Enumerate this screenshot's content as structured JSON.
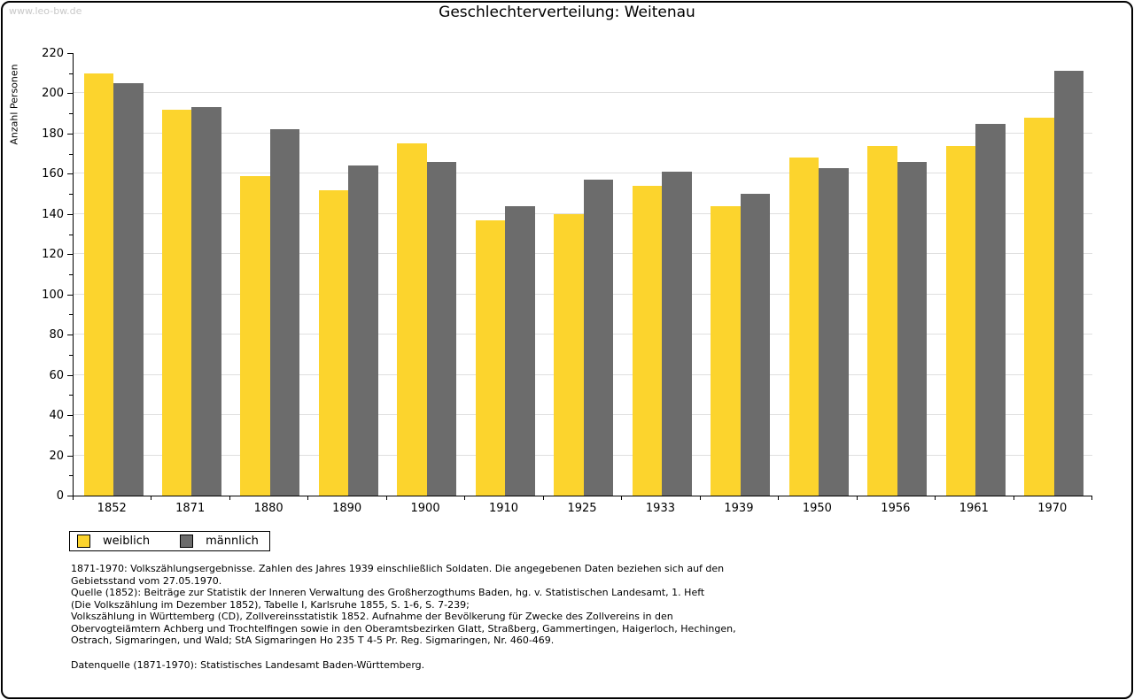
{
  "watermark": "www.leo-bw.de",
  "title": "Geschlechterverteilung: Weitenau",
  "chart_data": {
    "type": "bar",
    "title": "Geschlechterverteilung: Weitenau",
    "xlabel": "",
    "ylabel": "Anzahl Personen",
    "categories": [
      "1852",
      "1871",
      "1880",
      "1890",
      "1900",
      "1910",
      "1925",
      "1933",
      "1939",
      "1950",
      "1956",
      "1961",
      "1970"
    ],
    "series": [
      {
        "name": "weiblich",
        "color": "#FCD42D",
        "values": [
          210,
          192,
          159,
          152,
          175,
          137,
          140,
          154,
          144,
          168,
          174,
          174,
          188
        ]
      },
      {
        "name": "männlich",
        "color": "#6C6C6C",
        "values": [
          205,
          193,
          182,
          164,
          166,
          144,
          157,
          161,
          150,
          163,
          166,
          185,
          211
        ]
      }
    ],
    "ylim": [
      0,
      220
    ],
    "ytick_major_step": 20,
    "ytick_minor_step": 10,
    "grid": true,
    "gridline_color": "#DFDFDF",
    "legend_position": "bottom-left"
  },
  "footnotes": {
    "lines": [
      "1871-1970: Volkszählungsergebnisse. Zahlen des Jahres 1939 einschließlich Soldaten. Die angegebenen Daten beziehen sich auf den",
      "Gebietsstand vom 27.05.1970.",
      "Quelle (1852): Beiträge zur Statistik der Inneren Verwaltung des Großherzogthums Baden, hg. v. Statistischen Landesamt, 1. Heft",
      "(Die Volkszählung im Dezember 1852), Tabelle I, Karlsruhe 1855, S. 1-6, S. 7-239;",
      "Volkszählung in Württemberg (CD), Zollvereinsstatistik 1852. Aufnahme der Bevölkerung für Zwecke des Zollvereins in den",
      "Obervogteiämtern Achberg und Trochtelfingen sowie in den Oberamtsbezirken Glatt, Straßberg, Gammertingen, Haigerloch, Hechingen,",
      "Ostrach, Sigmaringen, und Wald; StA Sigmaringen Ho 235 T 4-5 Pr. Reg. Sigmaringen, Nr. 460-469."
    ],
    "datenquelle": "Datenquelle (1871-1970): Statistisches Landesamt Baden-Württemberg."
  }
}
